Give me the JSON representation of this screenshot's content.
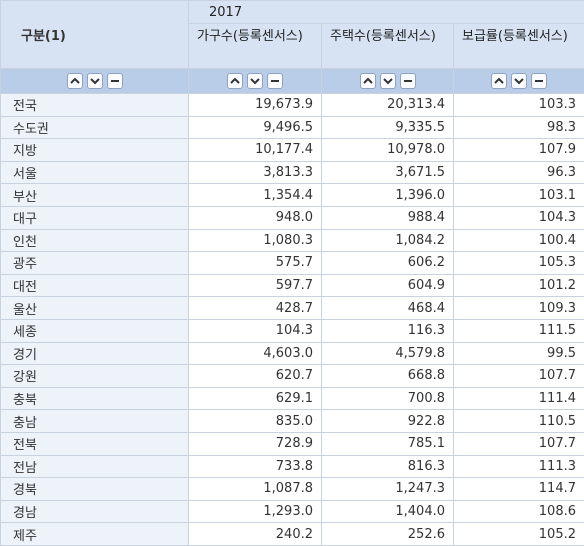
{
  "header": {
    "corner_label": "구분(1)",
    "year": "2017",
    "columns": [
      "가구수(등록센서스)",
      "주택수(등록센서스)",
      "보급률(등록센서스)"
    ]
  },
  "controls": {
    "icons": [
      "chevron-up-icon",
      "chevron-down-icon",
      "minus-icon"
    ]
  },
  "rows": [
    {
      "label": "전국",
      "values": [
        "19,673.9",
        "20,313.4",
        "103.3"
      ]
    },
    {
      "label": "수도권",
      "values": [
        "9,496.5",
        "9,335.5",
        "98.3"
      ]
    },
    {
      "label": "지방",
      "values": [
        "10,177.4",
        "10,978.0",
        "107.9"
      ]
    },
    {
      "label": "서울",
      "values": [
        "3,813.3",
        "3,671.5",
        "96.3"
      ]
    },
    {
      "label": "부산",
      "values": [
        "1,354.4",
        "1,396.0",
        "103.1"
      ]
    },
    {
      "label": "대구",
      "values": [
        "948.0",
        "988.4",
        "104.3"
      ]
    },
    {
      "label": "인천",
      "values": [
        "1,080.3",
        "1,084.2",
        "100.4"
      ]
    },
    {
      "label": "광주",
      "values": [
        "575.7",
        "606.2",
        "105.3"
      ]
    },
    {
      "label": "대전",
      "values": [
        "597.7",
        "604.9",
        "101.2"
      ]
    },
    {
      "label": "울산",
      "values": [
        "428.7",
        "468.4",
        "109.3"
      ]
    },
    {
      "label": "세종",
      "values": [
        "104.3",
        "116.3",
        "111.5"
      ]
    },
    {
      "label": "경기",
      "values": [
        "4,603.0",
        "4,579.8",
        "99.5"
      ]
    },
    {
      "label": "강원",
      "values": [
        "620.7",
        "668.8",
        "107.7"
      ]
    },
    {
      "label": "충북",
      "values": [
        "629.1",
        "700.8",
        "111.4"
      ]
    },
    {
      "label": "충남",
      "values": [
        "835.0",
        "922.8",
        "110.5"
      ]
    },
    {
      "label": "전북",
      "values": [
        "728.9",
        "785.1",
        "107.7"
      ]
    },
    {
      "label": "전남",
      "values": [
        "733.8",
        "816.3",
        "111.3"
      ]
    },
    {
      "label": "경북",
      "values": [
        "1,087.8",
        "1,247.3",
        "114.7"
      ]
    },
    {
      "label": "경남",
      "values": [
        "1,293.0",
        "1,404.0",
        "108.6"
      ]
    },
    {
      "label": "제주",
      "values": [
        "240.2",
        "252.6",
        "105.2"
      ]
    }
  ]
}
